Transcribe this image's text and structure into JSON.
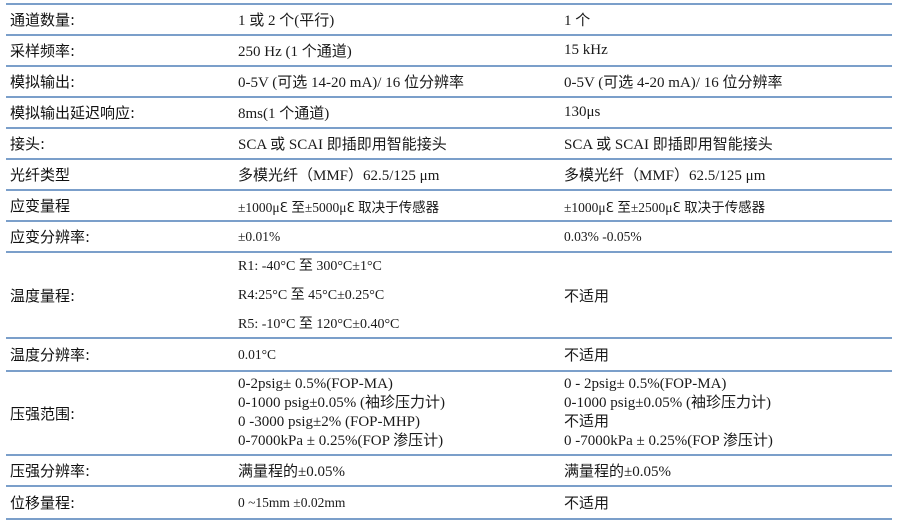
{
  "rows": [
    {
      "label": "通道数量:",
      "col2": [
        "1 或 2 个(平行)"
      ],
      "col3": [
        "1 个"
      ]
    },
    {
      "label": "采样频率:",
      "col2": [
        "250 Hz (1 个通道)"
      ],
      "col3": [
        "15 kHz"
      ]
    },
    {
      "label": "模拟输出:",
      "col2": [
        "0-5V (可选 14-20 mA)/ 16 位分辨率"
      ],
      "col3": [
        "0-5V (可选 4-20 mA)/ 16 位分辨率"
      ]
    },
    {
      "label": "模拟输出延迟响应:",
      "col2": [
        "8ms(1 个通道)"
      ],
      "col3": [
        "130μs"
      ]
    },
    {
      "label": "接头:",
      "col2": [
        "SCA 或 SCAI 即插即用智能接头"
      ],
      "col3": [
        "SCA 或 SCAI 即插即用智能接头"
      ]
    },
    {
      "label": "光纤类型",
      "col2": [
        "多模光纤（MMF）62.5/125 μm"
      ],
      "col3": [
        "多模光纤（MMF）62.5/125 μm"
      ]
    },
    {
      "label": "应变量程",
      "col2": [
        "±1000μℇ 至±5000μℇ 取决于传感器"
      ],
      "col3": [
        "±1000μℇ 至±2500μℇ 取决于传感器"
      ]
    },
    {
      "label": "应变分辨率:",
      "col2": [
        "±0.01%"
      ],
      "col3": [
        "0.03% -0.05%"
      ]
    },
    {
      "label": "温度量程:",
      "col2": [
        "R1: -40°C 至 300°C±1°C",
        "R4:25°C 至 45°C±0.25°C",
        "R5: -10°C 至 120°C±0.40°C"
      ],
      "col3": [
        "不适用"
      ]
    },
    {
      "label": "温度分辨率:",
      "col2": [
        "0.01°C"
      ],
      "col3": [
        "不适用"
      ]
    },
    {
      "label": "压强范围:",
      "col2": [
        "0-2psig± 0.5%(FOP-MA)",
        "0-1000 psig±0.05% (袖珍压力计)",
        "0 -3000 psig±2% (FOP-MHP)",
        "0-7000kPa ± 0.25%(FOP 渗压计)"
      ],
      "col3": [
        "0 - 2psig± 0.5%(FOP-MA)",
        "0-1000 psig±0.05% (袖珍压力计)",
        "不适用",
        "0 -7000kPa ± 0.25%(FOP 渗压计)"
      ]
    },
    {
      "label": "压强分辨率:",
      "col2": [
        "满量程的±0.05%"
      ],
      "col3": [
        "满量程的±0.05%"
      ]
    },
    {
      "label": "位移量程:",
      "col2": [
        "0 ~15mm ±0.02mm"
      ],
      "col3": [
        "不适用"
      ]
    }
  ],
  "colors": {
    "rule": "#7b9fca",
    "text": "#1a1a1a"
  }
}
